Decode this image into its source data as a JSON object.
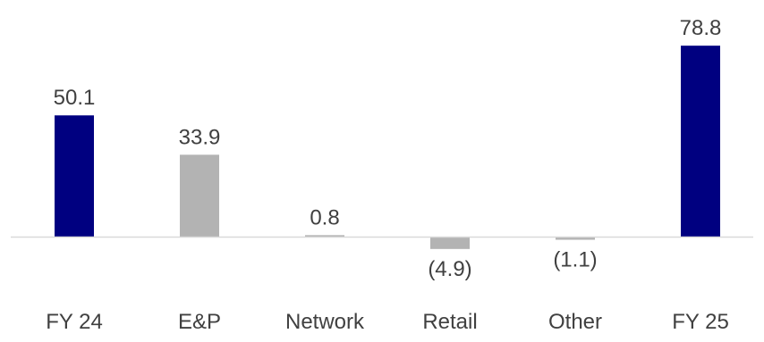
{
  "chart_data": {
    "type": "bar",
    "title": "",
    "xlabel": "",
    "ylabel": "",
    "categories": [
      "FY 24",
      "E&P",
      "Network",
      "Retail",
      "Other",
      "FY 25"
    ],
    "values": [
      50.1,
      33.9,
      0.8,
      -4.9,
      -1.1,
      78.8
    ],
    "data_labels": [
      "50.1",
      "33.9",
      "0.8",
      "(4.9)",
      "(1.1)",
      "78.8"
    ],
    "ylim": [
      -5,
      80
    ],
    "grid": false,
    "legend": "none",
    "colors": {
      "total": "#000080",
      "change": "#b3b3b3",
      "baseline": "#d9d9d9"
    },
    "bar_kinds": [
      "total",
      "change",
      "change",
      "change",
      "change",
      "total"
    ]
  }
}
